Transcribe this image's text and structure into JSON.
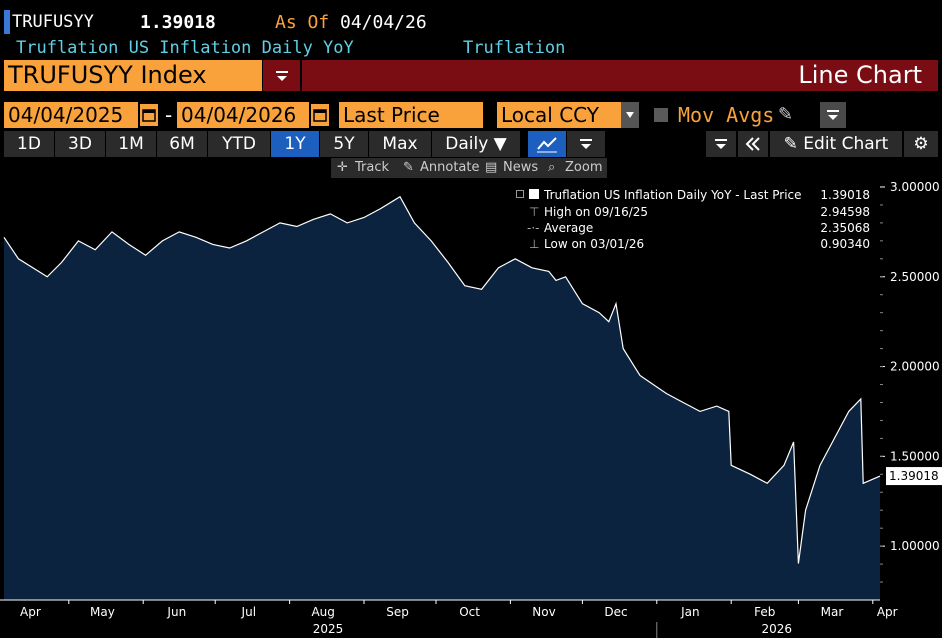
{
  "header": {
    "ticker": "TRUFUSYY",
    "price": "1.39018",
    "as_of_label": "As Of",
    "as_of_date": "04/04/26",
    "description": "Truflation US Inflation Daily YoY",
    "source": "Truflation"
  },
  "security": {
    "name": "TRUFUSYY Index",
    "chart_type": "Line Chart"
  },
  "controls": {
    "start_date": "04/04/2025",
    "dash": "-",
    "end_date": "04/04/2026",
    "field": "Last Price",
    "currency": "Local CCY",
    "mov_avgs": "Mov Avgs"
  },
  "toolbar": {
    "periods": [
      "1D",
      "3D",
      "1M",
      "6M",
      "YTD",
      "1Y",
      "5Y",
      "Max"
    ],
    "active_period": "1Y",
    "frequency": "Daily ▼",
    "edit_chart": "Edit Chart"
  },
  "subtoolbar": {
    "track": "Track",
    "annotate": "Annotate",
    "news": "News",
    "zoom": "Zoom"
  },
  "legend": {
    "series": "Truflation US Inflation Daily YoY - Last Price",
    "series_value": "1.39018",
    "high_label": "High on 09/16/25",
    "high_value": "2.94598",
    "avg_label": "Average",
    "avg_value": "2.35068",
    "low_label": "Low on 03/01/26",
    "low_value": "0.90340"
  },
  "colors": {
    "accent": "#f9a23c",
    "area_fill": "#0c2340",
    "line": "#ffffff",
    "header_bar": "#7a0c13",
    "active_tab": "#1d5fbf"
  },
  "chart_data": {
    "type": "area",
    "title": "Truflation US Inflation Daily YoY",
    "x_range": [
      "2025-04-04",
      "2026-04-04"
    ],
    "ylim": [
      0.7,
      3.05
    ],
    "y_ticks": [
      "3.00000",
      "2.50000",
      "2.00000",
      "1.50000",
      "1.00000"
    ],
    "y_tick_values": [
      3.0,
      2.5,
      2.0,
      1.5,
      1.0
    ],
    "x_ticks": [
      "Apr",
      "May",
      "Jun",
      "Jul",
      "Aug",
      "Sep",
      "Oct",
      "Nov",
      "Dec",
      "Jan",
      "Feb",
      "Mar",
      "Apr"
    ],
    "x_tick_dates": [
      "2025-04-15",
      "2025-05-15",
      "2025-06-15",
      "2025-07-15",
      "2025-08-15",
      "2025-09-15",
      "2025-10-15",
      "2025-11-15",
      "2025-12-15",
      "2026-01-15",
      "2026-02-15",
      "2026-03-15",
      "2026-04-07"
    ],
    "year_labels": [
      "2025",
      "2026"
    ],
    "year_label_dates": [
      "2025-08-17",
      "2026-02-20"
    ],
    "year_divider_date": "2026-01-01",
    "last_value_label": "1.39018",
    "last_value": 1.39018,
    "grid": false,
    "legend_position": "top-right",
    "x": [
      "2025-04-04",
      "2025-04-10",
      "2025-04-16",
      "2025-04-22",
      "2025-04-28",
      "2025-05-05",
      "2025-05-12",
      "2025-05-19",
      "2025-05-26",
      "2025-06-02",
      "2025-06-09",
      "2025-06-16",
      "2025-06-23",
      "2025-06-30",
      "2025-07-07",
      "2025-07-14",
      "2025-07-21",
      "2025-07-28",
      "2025-08-04",
      "2025-08-11",
      "2025-08-18",
      "2025-08-25",
      "2025-09-01",
      "2025-09-08",
      "2025-09-16",
      "2025-09-22",
      "2025-09-29",
      "2025-10-06",
      "2025-10-13",
      "2025-10-20",
      "2025-10-27",
      "2025-11-03",
      "2025-11-10",
      "2025-11-17",
      "2025-11-20",
      "2025-11-24",
      "2025-12-01",
      "2025-12-08",
      "2025-12-12",
      "2025-12-15",
      "2025-12-18",
      "2025-12-25",
      "2026-01-05",
      "2026-01-12",
      "2026-01-19",
      "2026-01-26",
      "2026-01-31",
      "2026-02-01",
      "2026-02-09",
      "2026-02-16",
      "2026-02-23",
      "2026-02-27",
      "2026-03-01",
      "2026-03-04",
      "2026-03-10",
      "2026-03-16",
      "2026-03-22",
      "2026-03-27",
      "2026-03-28",
      "2026-04-04"
    ],
    "series": [
      {
        "values": [
          2.72,
          2.6,
          2.55,
          2.5,
          2.58,
          2.7,
          2.65,
          2.75,
          2.68,
          2.62,
          2.7,
          2.75,
          2.72,
          2.68,
          2.66,
          2.7,
          2.75,
          2.8,
          2.78,
          2.82,
          2.85,
          2.8,
          2.83,
          2.88,
          2.94598,
          2.8,
          2.7,
          2.58,
          2.45,
          2.43,
          2.55,
          2.6,
          2.55,
          2.53,
          2.48,
          2.5,
          2.35,
          2.3,
          2.25,
          2.35,
          2.1,
          1.95,
          1.85,
          1.8,
          1.75,
          1.78,
          1.75,
          1.45,
          1.4,
          1.35,
          1.45,
          1.58,
          0.9034,
          1.2,
          1.45,
          1.6,
          1.75,
          1.82,
          1.35,
          1.39018
        ]
      }
    ]
  }
}
